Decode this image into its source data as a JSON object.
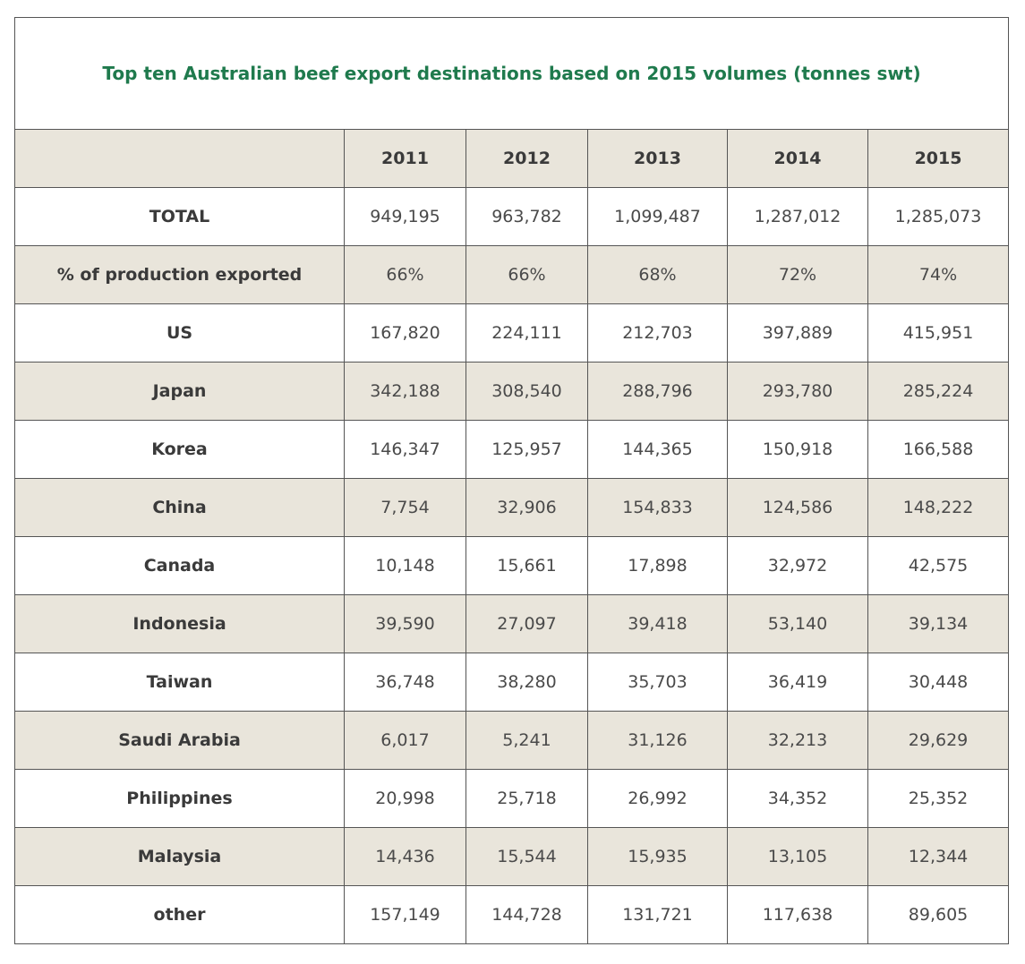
{
  "table": {
    "title": "Top ten Australian beef export destinations based on 2015 volumes (tonnes swt)",
    "corner": "",
    "years": [
      "2011",
      "2012",
      "2013",
      "2014",
      "2015"
    ],
    "rows": [
      {
        "label": "TOTAL",
        "values": [
          "949,195",
          "963,782",
          "1,099,487",
          "1,287,012",
          "1,285,073"
        ]
      },
      {
        "label": "% of production exported",
        "values": [
          "66%",
          "66%",
          "68%",
          "72%",
          "74%"
        ]
      },
      {
        "label": "US",
        "values": [
          "167,820",
          "224,111",
          "212,703",
          "397,889",
          "415,951"
        ]
      },
      {
        "label": "Japan",
        "values": [
          "342,188",
          "308,540",
          "288,796",
          "293,780",
          "285,224"
        ]
      },
      {
        "label": "Korea",
        "values": [
          "146,347",
          "125,957",
          "144,365",
          "150,918",
          "166,588"
        ]
      },
      {
        "label": "China",
        "values": [
          "7,754",
          "32,906",
          "154,833",
          "124,586",
          "148,222"
        ]
      },
      {
        "label": "Canada",
        "values": [
          "10,148",
          "15,661",
          "17,898",
          "32,972",
          "42,575"
        ]
      },
      {
        "label": "Indonesia",
        "values": [
          "39,590",
          "27,097",
          "39,418",
          "53,140",
          "39,134"
        ]
      },
      {
        "label": "Taiwan",
        "values": [
          "36,748",
          "38,280",
          "35,703",
          "36,419",
          "30,448"
        ]
      },
      {
        "label": "Saudi Arabia",
        "values": [
          "6,017",
          "5,241",
          "31,126",
          "32,213",
          "29,629"
        ]
      },
      {
        "label": "Philippines",
        "values": [
          "20,998",
          "25,718",
          "26,992",
          "34,352",
          "25,352"
        ]
      },
      {
        "label": "Malaysia",
        "values": [
          "14,436",
          "15,544",
          "15,935",
          "13,105",
          "12,344"
        ]
      },
      {
        "label": "other",
        "values": [
          "157,149",
          "144,728",
          "131,721",
          "117,638",
          "89,605"
        ]
      }
    ]
  },
  "colors": {
    "title": "#1f7a4d",
    "shaded_row": "#e9e5db",
    "border": "#555555"
  }
}
